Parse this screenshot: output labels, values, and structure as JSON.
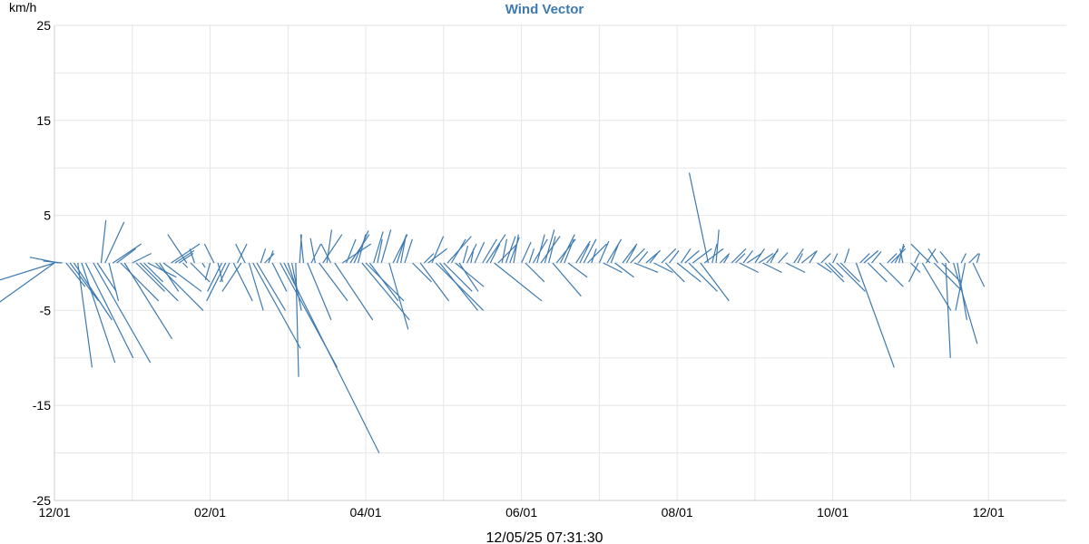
{
  "chart_data": {
    "type": "wind-vector",
    "title": "Wind Vector",
    "ylabel": "km/h",
    "ylim": [
      -25,
      25
    ],
    "y_ticks": [
      25,
      15,
      5,
      -5,
      -15,
      -25
    ],
    "x_ticks": [
      "12/01",
      "02/01",
      "04/01",
      "06/01",
      "08/01",
      "10/01",
      "12/01"
    ],
    "x_tick_positions": [
      0,
      2,
      4,
      6,
      8,
      10,
      12
    ],
    "x_grid_positions": [
      0,
      1,
      2,
      3,
      4,
      5,
      6,
      7,
      8,
      9,
      10,
      11,
      12
    ],
    "xlim": [
      0,
      13
    ],
    "footer_timestamp": "12/05/25 07:31:30",
    "series_color": "#3d7ab0",
    "vectors": [
      [
        0.0,
        -8,
        -2.5
      ],
      [
        0.0,
        -7,
        -5
      ],
      [
        0.05,
        -3,
        0.6
      ],
      [
        0.1,
        -2,
        0.2
      ],
      [
        0.15,
        2,
        -2.5
      ],
      [
        0.2,
        3,
        -4
      ],
      [
        0.25,
        4,
        -6
      ],
      [
        0.3,
        1.5,
        -11
      ],
      [
        0.35,
        3.5,
        -10.5
      ],
      [
        0.4,
        5,
        -10
      ],
      [
        0.5,
        6,
        -10.5
      ],
      [
        0.55,
        2,
        -3
      ],
      [
        0.6,
        0.5,
        4.5
      ],
      [
        0.65,
        2,
        4.3
      ],
      [
        0.7,
        1,
        -4
      ],
      [
        0.75,
        3,
        2
      ],
      [
        0.8,
        2,
        1.5
      ],
      [
        0.85,
        4,
        -4
      ],
      [
        0.9,
        5,
        -8
      ],
      [
        1.0,
        2,
        1
      ],
      [
        1.05,
        3,
        -3
      ],
      [
        1.1,
        4,
        -4
      ],
      [
        1.15,
        2,
        -2
      ],
      [
        1.2,
        3,
        -1.5
      ],
      [
        1.3,
        5,
        -5
      ],
      [
        1.35,
        2,
        -3
      ],
      [
        1.4,
        4,
        -3
      ],
      [
        1.5,
        3,
        2
      ],
      [
        1.55,
        2,
        1.3
      ],
      [
        1.6,
        1.5,
        1
      ],
      [
        1.65,
        0.5,
        -0.5
      ],
      [
        1.7,
        -2,
        3
      ],
      [
        1.75,
        2,
        -2
      ],
      [
        1.8,
        -0.5,
        1.5
      ],
      [
        1.9,
        0.3,
        -0.5
      ],
      [
        2.0,
        -0.5,
        -1.8
      ],
      [
        2.05,
        -1,
        2
      ],
      [
        2.1,
        0.5,
        -2
      ],
      [
        2.15,
        -1.5,
        -3
      ],
      [
        2.2,
        -2,
        -4
      ],
      [
        2.25,
        -1,
        -2
      ],
      [
        2.3,
        2,
        -4
      ],
      [
        2.35,
        1,
        2
      ],
      [
        2.4,
        -2,
        -3
      ],
      [
        2.45,
        -1,
        2
      ],
      [
        2.5,
        1.5,
        -5
      ],
      [
        2.55,
        5,
        -9
      ],
      [
        2.6,
        3,
        -5
      ],
      [
        2.65,
        0.5,
        1.5
      ],
      [
        2.7,
        1,
        1
      ],
      [
        2.75,
        0.5,
        1.3
      ],
      [
        2.8,
        1.5,
        -3
      ],
      [
        2.9,
        6,
        -11
      ],
      [
        2.95,
        10,
        -20
      ],
      [
        3.0,
        1,
        -3
      ],
      [
        3.05,
        1,
        -5
      ],
      [
        3.1,
        0.3,
        -12
      ],
      [
        3.15,
        0.2,
        3
      ],
      [
        3.2,
        -0.3,
        3
      ],
      [
        3.25,
        2.5,
        -6
      ],
      [
        3.3,
        1,
        2
      ],
      [
        3.35,
        -0.5,
        2.6
      ],
      [
        3.4,
        3,
        -4
      ],
      [
        3.45,
        2,
        3
      ],
      [
        3.5,
        0.5,
        3.5
      ],
      [
        3.55,
        -1,
        2
      ],
      [
        3.6,
        4,
        -6
      ],
      [
        3.7,
        3,
        2
      ],
      [
        3.75,
        1,
        2.5
      ],
      [
        3.8,
        2,
        3
      ],
      [
        3.85,
        1.5,
        3.4
      ],
      [
        3.9,
        0.8,
        3
      ],
      [
        3.95,
        5,
        -6
      ],
      [
        4.0,
        4,
        -4
      ],
      [
        4.05,
        3,
        -4
      ],
      [
        4.1,
        1,
        3.3
      ],
      [
        4.15,
        0.5,
        2.5
      ],
      [
        4.2,
        1,
        3.5
      ],
      [
        4.3,
        2,
        -7
      ],
      [
        4.35,
        1.5,
        3
      ],
      [
        4.4,
        1,
        3
      ],
      [
        4.45,
        0.5,
        2.7
      ],
      [
        4.5,
        0.8,
        2.5
      ],
      [
        4.6,
        2,
        -2
      ],
      [
        4.7,
        3,
        -4
      ],
      [
        4.75,
        1,
        1
      ],
      [
        4.8,
        2,
        1.5
      ],
      [
        4.85,
        1.2,
        2.8
      ],
      [
        4.9,
        5,
        -5
      ],
      [
        4.95,
        4,
        -5
      ],
      [
        5.0,
        3,
        -3
      ],
      [
        5.05,
        2.5,
        2.8
      ],
      [
        5.1,
        1.5,
        2.5
      ],
      [
        5.15,
        3,
        -2.5
      ],
      [
        5.2,
        2,
        -3
      ],
      [
        5.25,
        0.5,
        1.8
      ],
      [
        5.3,
        1,
        2
      ],
      [
        5.35,
        0.3,
        1.5
      ],
      [
        5.4,
        1,
        2.2
      ],
      [
        5.5,
        1.5,
        2.5
      ],
      [
        5.55,
        2,
        3
      ],
      [
        5.6,
        1,
        2
      ],
      [
        5.65,
        5,
        -4
      ],
      [
        5.7,
        2,
        2
      ],
      [
        5.75,
        0.5,
        2.5
      ],
      [
        5.8,
        1,
        2.8
      ],
      [
        5.85,
        1,
        2.7
      ],
      [
        5.9,
        0.5,
        3
      ],
      [
        6.0,
        1,
        2.2
      ],
      [
        6.05,
        2,
        -2
      ],
      [
        6.1,
        0.5,
        1.5
      ],
      [
        6.15,
        1.5,
        2.5
      ],
      [
        6.2,
        0.8,
        3
      ],
      [
        6.25,
        2,
        2.8
      ],
      [
        6.3,
        1,
        3.5
      ],
      [
        6.35,
        0.7,
        2.8
      ],
      [
        6.4,
        3,
        -3.5
      ],
      [
        6.45,
        2,
        2.5
      ],
      [
        6.5,
        1.5,
        3
      ],
      [
        6.55,
        1,
        2.5
      ],
      [
        6.6,
        2,
        -1.5
      ],
      [
        6.7,
        1.5,
        2.3
      ],
      [
        6.75,
        1,
        2
      ],
      [
        6.8,
        1.3,
        2.5
      ],
      [
        6.85,
        2,
        2
      ],
      [
        6.9,
        0.5,
        1.5
      ],
      [
        7.0,
        1,
        2.3
      ],
      [
        7.05,
        2,
        -1
      ],
      [
        7.1,
        1.5,
        2.5
      ],
      [
        7.15,
        0.8,
        2
      ],
      [
        7.2,
        2,
        -1.5
      ],
      [
        7.3,
        1.5,
        2
      ],
      [
        7.35,
        1,
        1.8
      ],
      [
        7.4,
        1.5,
        1.5
      ],
      [
        7.45,
        2.5,
        -1
      ],
      [
        7.5,
        1,
        1.2
      ],
      [
        7.6,
        1.5,
        1.3
      ],
      [
        7.65,
        0.8,
        1
      ],
      [
        7.7,
        2,
        -1
      ],
      [
        7.8,
        1.5,
        1.5
      ],
      [
        7.85,
        2,
        -2
      ],
      [
        7.9,
        1,
        1.3
      ],
      [
        8.0,
        2.5,
        -2
      ],
      [
        8.05,
        1,
        1.5
      ],
      [
        8.1,
        1.5,
        1.3
      ],
      [
        8.15,
        3,
        -3
      ],
      [
        8.2,
        2,
        1.5
      ],
      [
        8.3,
        3,
        -4
      ],
      [
        8.35,
        2,
        1.5
      ],
      [
        8.4,
        -2,
        9.5
      ],
      [
        8.45,
        0.5,
        2
      ],
      [
        8.5,
        0.3,
        3.5
      ],
      [
        8.55,
        1,
        1
      ],
      [
        8.6,
        0.5,
        0.8
      ],
      [
        8.7,
        1.5,
        1.5
      ],
      [
        8.75,
        1,
        1
      ],
      [
        8.8,
        2,
        -1
      ],
      [
        8.85,
        1,
        1.3
      ],
      [
        8.9,
        1.5,
        1
      ],
      [
        9.0,
        1,
        1.5
      ],
      [
        9.05,
        1.5,
        1
      ],
      [
        9.1,
        2,
        -1
      ],
      [
        9.15,
        1.2,
        1.3
      ],
      [
        9.2,
        0.8,
        1.5
      ],
      [
        9.3,
        1,
        1.1
      ],
      [
        9.4,
        2,
        -1
      ],
      [
        9.5,
        1,
        1.5
      ],
      [
        9.55,
        0.5,
        1
      ],
      [
        9.6,
        1.5,
        1.2
      ],
      [
        9.7,
        0.8,
        1.3
      ],
      [
        9.8,
        1.5,
        -1
      ],
      [
        9.85,
        1,
        1
      ],
      [
        9.9,
        2,
        -2
      ],
      [
        9.95,
        1.5,
        -1.5
      ],
      [
        10.0,
        0.5,
        1
      ],
      [
        10.05,
        3,
        -3
      ],
      [
        10.1,
        2,
        -2
      ],
      [
        10.15,
        0.5,
        1.5
      ],
      [
        10.3,
        4,
        -11
      ],
      [
        10.35,
        1,
        1
      ],
      [
        10.4,
        1.5,
        1.3
      ],
      [
        10.45,
        2,
        -2
      ],
      [
        10.5,
        1,
        1.2
      ],
      [
        10.6,
        2.5,
        -2.5
      ],
      [
        10.7,
        1,
        1
      ],
      [
        10.75,
        1.5,
        1.5
      ],
      [
        10.8,
        1,
        1.8
      ],
      [
        10.85,
        0.5,
        2
      ],
      [
        10.9,
        -0.3,
        1.5
      ],
      [
        11.0,
        1,
        -1
      ],
      [
        11.05,
        0.5,
        1
      ],
      [
        11.1,
        -1,
        -2
      ],
      [
        11.15,
        3,
        -5
      ],
      [
        11.2,
        1,
        1.5
      ],
      [
        11.25,
        -2,
        2
      ],
      [
        11.3,
        3,
        -3
      ],
      [
        11.35,
        -1,
        1.5
      ],
      [
        11.4,
        2,
        -2
      ],
      [
        11.45,
        0.5,
        -10
      ],
      [
        11.5,
        -1,
        1.2
      ],
      [
        11.55,
        2.5,
        -8.5
      ],
      [
        11.6,
        1,
        -6
      ],
      [
        11.65,
        0.5,
        1
      ],
      [
        11.7,
        -1,
        -5
      ],
      [
        11.75,
        1,
        1
      ],
      [
        11.8,
        1.2,
        -2.5
      ],
      [
        11.85,
        0.3,
        1
      ]
    ]
  }
}
